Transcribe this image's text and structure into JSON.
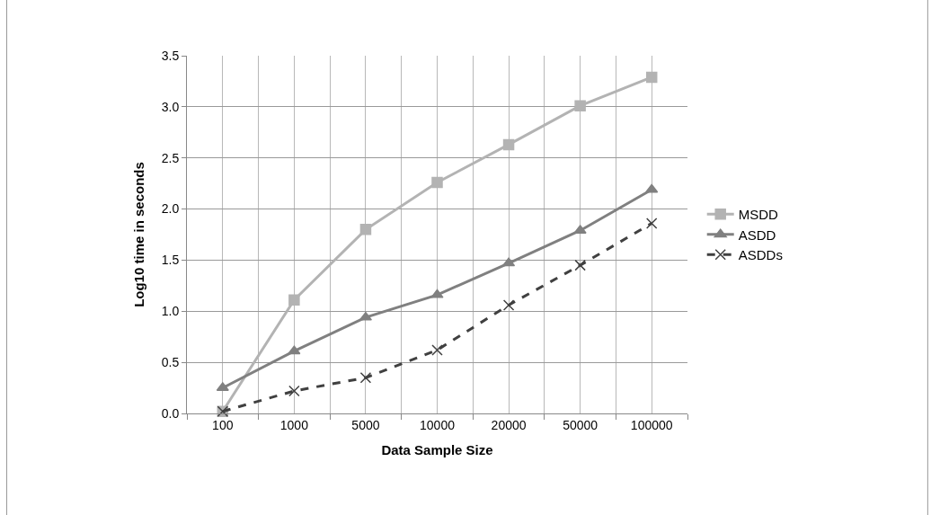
{
  "chart_data": {
    "type": "line",
    "xlabel": "Data Sample Size",
    "ylabel": "Log10 time in seconds",
    "categories": [
      "100",
      "1000",
      "5000",
      "10000",
      "20000",
      "50000",
      "100000"
    ],
    "series": [
      {
        "name": "MSDD",
        "color": "#b3b3b3",
        "marker": "square",
        "line_style": "solid",
        "values": [
          0.02,
          1.11,
          1.8,
          2.26,
          2.63,
          3.01,
          3.29
        ]
      },
      {
        "name": "ASDD",
        "color": "#808080",
        "marker": "triangle",
        "line_style": "solid",
        "values": [
          0.25,
          0.61,
          0.94,
          1.16,
          1.47,
          1.79,
          2.19
        ]
      },
      {
        "name": "ASDDs",
        "color": "#404040",
        "marker": "cross",
        "line_style": "dashed",
        "values": [
          0.02,
          0.22,
          0.35,
          0.62,
          1.06,
          1.45,
          1.86
        ]
      }
    ],
    "ylim": [
      0,
      3.5
    ],
    "yticks": [
      {
        "value": 0,
        "label": "0.0"
      },
      {
        "value": 0.5,
        "label": "0.5"
      },
      {
        "value": 1,
        "label": "1.0"
      },
      {
        "value": 1.5,
        "label": "1.5"
      },
      {
        "value": 2,
        "label": "2.0"
      },
      {
        "value": 2.5,
        "label": "2.5"
      },
      {
        "value": 3,
        "label": "3.0"
      },
      {
        "value": 3.5,
        "label": "3.5"
      }
    ],
    "grid": true,
    "legend": "right"
  }
}
